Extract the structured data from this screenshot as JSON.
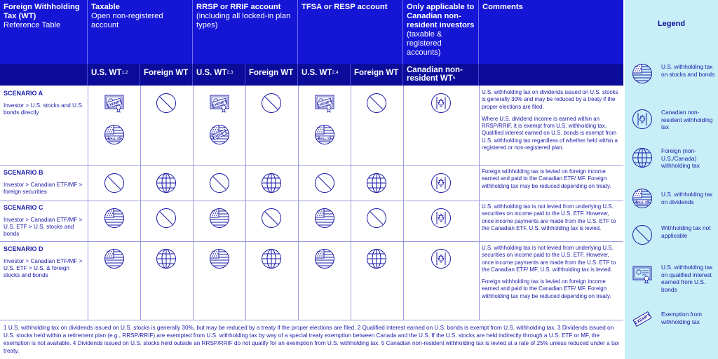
{
  "header": {
    "col1_title": "Foreign Withholding Tax (WT)",
    "col1_sub": "Reference Table",
    "col2_title": "Taxable",
    "col2_sub": "Open non-registered account",
    "col3_title": "RRSP or RRIF account",
    "col3_sub": "(including all locked-in plan types)",
    "col4_title": "TFSA or RESP account",
    "col5_title": "Only applicable to Canadian non-resident investors",
    "col5_sub": "(taxable & registered accounts)",
    "col6_title": "Comments"
  },
  "subheader": {
    "us_wt": "U.S. WT",
    "us_wt_sup_taxable": "1,2",
    "foreign_wt": "Foreign WT",
    "us_wt_sup_rrsp": "2,3",
    "us_wt_sup_tfsa": "2,4",
    "can_nr": "Canadian non-resident WT",
    "can_nr_sup": "5"
  },
  "scenarios": [
    {
      "title": "SCENARIO A",
      "desc": "Investor > U.S. stocks and U.S. bonds directly",
      "comments": [
        "U.S. withholding tax on dividends issued on U.S. stocks is generally 30% and may be reduced by a treaty if the proper elections are filed.",
        "Where U.S. dividend income is earned within an RRSP/RRIF, it is exempt from U.S. withholding tax. Qualified interest earned on U.S. bonds is exempt from U.S. withholding tax regardless of whether held within a registered or non-registered plan."
      ]
    },
    {
      "title": "SCENARIO B",
      "desc": "Investor > Canadian ETF/MF > foreign securities",
      "comments": [
        "Foreign withholding tax is levied on foreign income earned and paid to the Canadian ETF/ MF. Foreign withholding tax may be reduced depending on treaty."
      ]
    },
    {
      "title": "SCENARIO C",
      "desc": "Investor > Canadian ETF/MF > U.S. ETF > U.S. stocks and bonds",
      "comments": [
        "U.S. withholding tax is not levied from underlying U.S. securities on income paid to the U.S. ETF. However, once income payments are made from the U.S. ETF to the Canadian ETF, U.S. withholding tax is levied."
      ]
    },
    {
      "title": "SCENARIO D",
      "desc": "Investor > Canadian ETF/MF > U.S. ETF > U.S. & foreign stocks and bonds",
      "comments": [
        "U.S. withholding tax is not levied from underlying U.S. securities on income paid to the U.S. ETF. However, once income payments are made from the U.S. ETF to the Canadian ETF/ MF, U.S. withholding tax is levied.",
        "Foreign withholding tax is levied on foreign income earned and paid to the Canadian ETF/ MF. Foreign withholding tax may be reduced depending on treaty."
      ]
    }
  ],
  "icon_text": {
    "wall": "WALL ST",
    "exempt": "EXEMPT"
  },
  "footnote": "1 U.S. withholding tax on dividends issued on U.S. stocks is generally 30%, but may be reduced by a treaty if the proper elections are filed.  2 Qualified interest earned on U.S. bonds is exempt from U.S. withholding tax.  3 Dividends issued on U.S. stocks held within a retirement plan (e.g., RRSP/RRIF) are exempted from U.S. withholding tax by way of a special treaty exemption between Canada and the U.S. If the U.S. stocks are held indirectly through a U.S. ETF or MF, the exemption is not available.  4 Dividends issued on U.S. stocks held outside an RRSP/RRIF do not qualify for an exemption from U.S. withholding tax.  5 Canadian non-resident withholding tax is levied at a rate of 25% unless reduced under a tax treaty.",
  "legend": {
    "title": "Legend",
    "items": [
      {
        "icon": "us-flag-icon",
        "label": "U.S. withholding tax on stocks and bonds"
      },
      {
        "icon": "canada-flag-icon",
        "label": "Canadian non-resident withholding tax"
      },
      {
        "icon": "globe-icon",
        "label": "Foreign (non-U.S./Canada) withholding tax"
      },
      {
        "icon": "wall-street-icon",
        "label": "U.S. withholding tax on dividends"
      },
      {
        "icon": "not-applicable-icon",
        "label": "Withholding tax not applicable"
      },
      {
        "icon": "certificate-icon",
        "label": "U.S. withholding tax on qualified interest earned from U.S. bonds"
      },
      {
        "icon": "exempt-stamp-icon",
        "label": "Exemption from withholding tax"
      }
    ]
  },
  "colors": {
    "header_blue": "#1515d6",
    "subheader_navy": "#0c0c9a",
    "text_blue": "#1a1aa8",
    "legend_bg": "#c8eef7"
  }
}
